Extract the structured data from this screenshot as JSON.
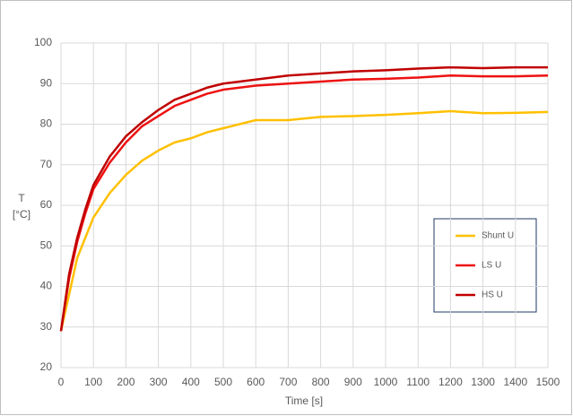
{
  "chart_data": {
    "type": "line",
    "x_label": "Time [s]",
    "y_label": [
      "T",
      "[°C]"
    ],
    "x": [
      0,
      25,
      50,
      75,
      100,
      150,
      200,
      250,
      300,
      350,
      400,
      450,
      500,
      550,
      600,
      700,
      800,
      900,
      1000,
      1100,
      1200,
      1300,
      1400,
      1500
    ],
    "series": [
      {
        "name": "Shunt U",
        "color": "#ffc000",
        "values": [
          29,
          38,
          47,
          52,
          57,
          63,
          67.5,
          71,
          73.5,
          75.5,
          76.5,
          78,
          79,
          80,
          81,
          81,
          81.8,
          82,
          82.3,
          82.7,
          83.2,
          82.7,
          82.8,
          83
        ]
      },
      {
        "name": "LS U",
        "color": "#ee1111",
        "values": [
          29,
          42,
          51,
          58,
          64,
          70.5,
          75.5,
          79.5,
          82,
          84.5,
          86,
          87.5,
          88.5,
          89,
          89.5,
          90,
          90.5,
          91,
          91.2,
          91.5,
          92,
          91.8,
          91.8,
          92
        ]
      },
      {
        "name": "HS U",
        "color": "#c00000",
        "values": [
          29,
          43,
          52,
          59,
          65,
          72,
          77,
          80.5,
          83.5,
          86,
          87.5,
          89,
          90,
          90.5,
          91,
          92,
          92.5,
          93,
          93.3,
          93.7,
          94,
          93.8,
          94,
          94
        ]
      }
    ],
    "xlim": [
      0,
      1500
    ],
    "xticks": [
      0,
      100,
      200,
      300,
      400,
      500,
      600,
      700,
      800,
      900,
      1000,
      1100,
      1200,
      1300,
      1400,
      1500
    ],
    "ylim": [
      20,
      100
    ],
    "yticks": [
      20,
      30,
      40,
      50,
      60,
      70,
      80,
      90,
      100
    ],
    "grid": true
  }
}
